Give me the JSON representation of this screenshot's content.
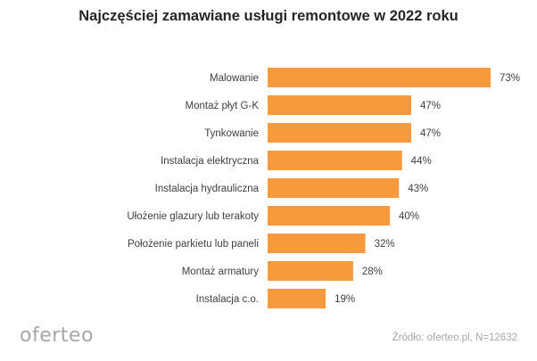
{
  "chart_data": {
    "type": "bar",
    "orientation": "horizontal",
    "title": "Najczęściej zamawiane usługi remontowe w 2022 roku",
    "categories": [
      "Malowanie",
      "Montaż płyt G-K",
      "Tynkowanie",
      "Instalacja elektryczna",
      "Instalacja hydrauliczna",
      "Ułożenie glazury lub terakoty",
      "Położenie parkietu lub paneli",
      "Montaż armatury",
      "Instalacja c.o."
    ],
    "values": [
      73,
      47,
      47,
      44,
      43,
      40,
      32,
      28,
      19
    ],
    "value_labels": [
      "73%",
      "47%",
      "47%",
      "44%",
      "43%",
      "40%",
      "32%",
      "28%",
      "19%"
    ],
    "xlim": [
      0,
      73
    ],
    "grid": false,
    "bar_color": "#f79a3e"
  },
  "logo": "oferteo",
  "source": "Źródło: oferteo.pl, N=12632"
}
